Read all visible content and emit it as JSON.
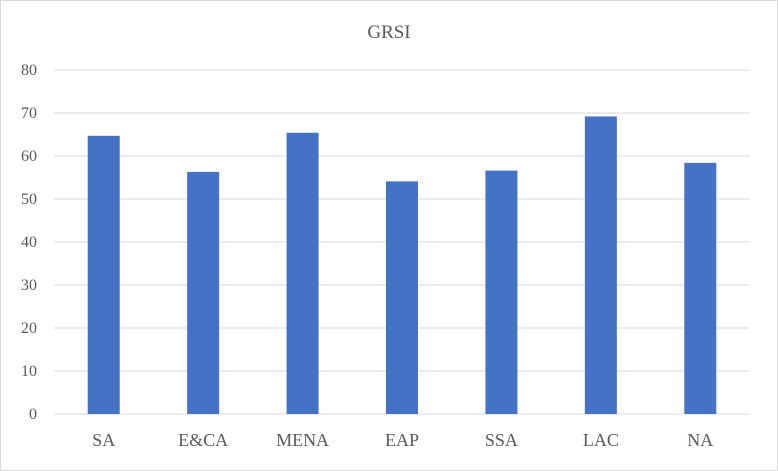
{
  "chart_data": {
    "type": "bar",
    "title": "GRSI",
    "xlabel": "",
    "ylabel": "",
    "categories": [
      "SA",
      "E&CA",
      "MENA",
      "EAP",
      "SSA",
      "LAC",
      "NA"
    ],
    "values": [
      64.7,
      56.3,
      65.4,
      54.1,
      56.6,
      69.2,
      58.4
    ],
    "ylim": [
      0,
      80
    ],
    "yticks": [
      0,
      10,
      20,
      30,
      40,
      50,
      60,
      70,
      80
    ],
    "grid": true,
    "legend": "none",
    "bar_color": "#4472C4"
  }
}
